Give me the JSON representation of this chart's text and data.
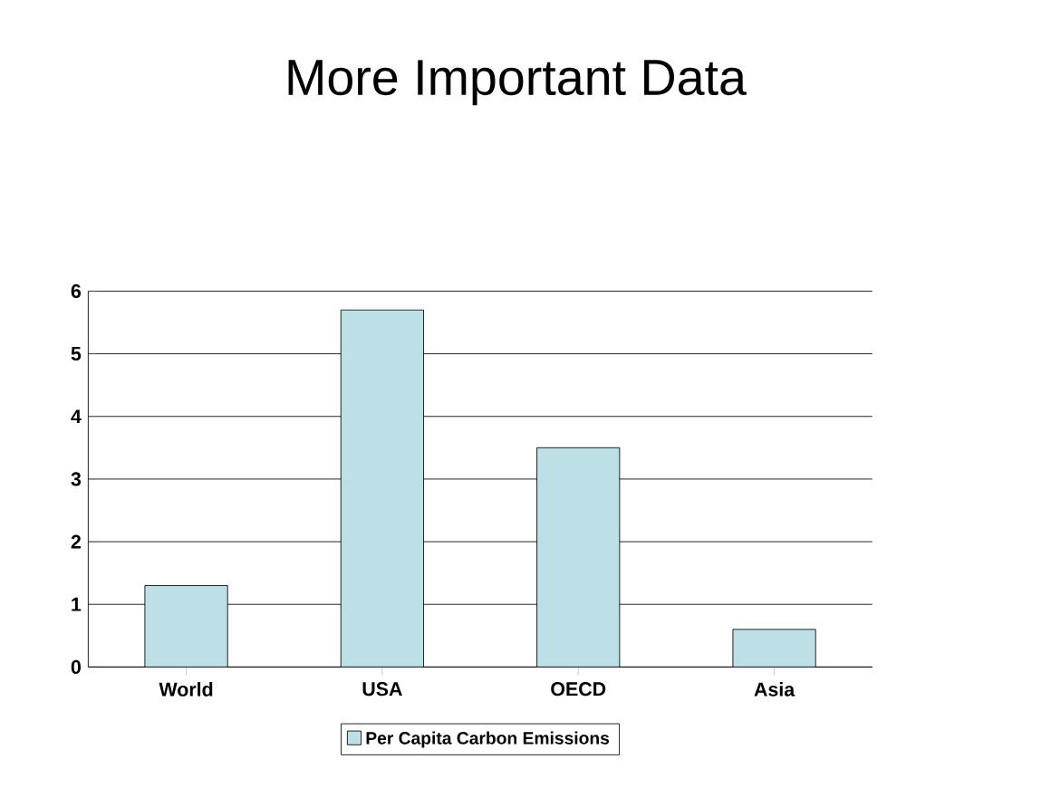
{
  "chart_data": {
    "type": "bar",
    "title": "More Important Data",
    "categories": [
      "World",
      "USA",
      "OECD",
      "Asia"
    ],
    "series": [
      {
        "name": "Per Capita Carbon Emissions",
        "color": "#bde0e6",
        "values": [
          1.3,
          5.7,
          3.5,
          0.6
        ]
      }
    ],
    "ylim": [
      0,
      6
    ],
    "yticks": [
      0,
      1,
      2,
      3,
      4,
      5,
      6
    ],
    "grid": "y",
    "legend": "bottom"
  }
}
